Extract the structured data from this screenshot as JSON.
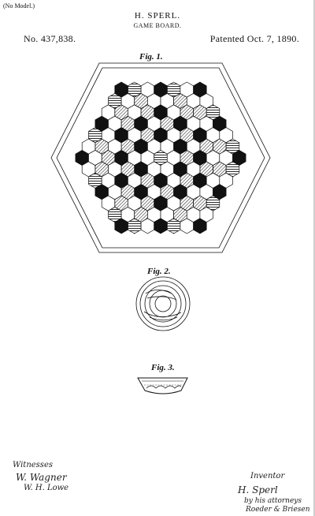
{
  "header": {
    "model_note": "(No Model.)",
    "inventor": "H. SPERL.",
    "subject": "GAME BOARD.",
    "patent_number": "No. 437,838.",
    "patent_date": "Patented Oct. 7, 1890."
  },
  "figures": {
    "fig1": "Fig. 1.",
    "fig2": "Fig. 2.",
    "fig3": "Fig. 3."
  },
  "signatures": {
    "witnesses_label": "Witnesses",
    "witness1": "W. Wagner",
    "witness2": "W. H. Lowe",
    "inventor_label": "Inventor",
    "inventor_sig": "H. Sperl",
    "attorney_line": "by his attorneys",
    "attorneys": "Roeder & Briesen"
  }
}
